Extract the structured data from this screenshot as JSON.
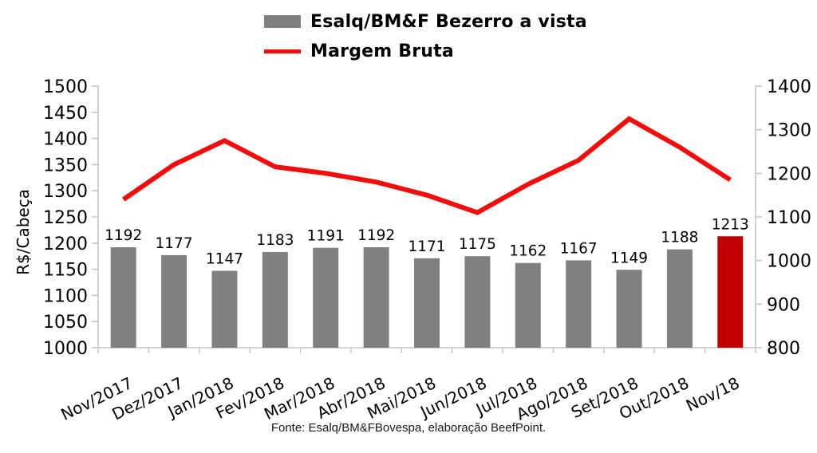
{
  "legend": {
    "items": [
      {
        "label": "Esalq/BM&F Bezerro a vista",
        "swatch": "bar",
        "color": "#808080"
      },
      {
        "label": "Margem Bruta",
        "swatch": "line",
        "color": "#f20d0d"
      }
    ]
  },
  "footer": {
    "source": "Fonte: Esalq/BM&FBovespa, elaboração BeefPoint."
  },
  "chart_data": {
    "type": "bar",
    "title": "",
    "ylabel_left": "R$/Cabeça",
    "ylabel_right": "",
    "xlabel": "",
    "grid": false,
    "legend_position": "top",
    "categories": [
      "Nov/2017",
      "Dez/2017",
      "Jan/2018",
      "Fev/2018",
      "Mar/2018",
      "Abr/2018",
      "Mai/2018",
      "Jun/2018",
      "Jul/2018",
      "Ago/2018",
      "Set/2018",
      "Out/2018",
      "Nov/18"
    ],
    "axis_left": {
      "min": 1000,
      "max": 1500,
      "step": 50
    },
    "axis_right": {
      "min": 800,
      "max": 1400,
      "step": 100
    },
    "series": [
      {
        "name": "Esalq/BM&F Bezerro a vista",
        "type": "bar",
        "axis": "left",
        "color": "#808080",
        "highlight_index": 12,
        "highlight_color": "#c00000",
        "values": [
          1192,
          1177,
          1147,
          1183,
          1191,
          1192,
          1171,
          1175,
          1162,
          1167,
          1149,
          1188,
          1213
        ]
      },
      {
        "name": "Margem Bruta",
        "type": "line",
        "axis": "right",
        "color": "#f20d0d",
        "values": [
          1140,
          1220,
          1275,
          1215,
          1200,
          1180,
          1150,
          1110,
          1175,
          1230,
          1325,
          1260,
          1185
        ]
      }
    ]
  }
}
